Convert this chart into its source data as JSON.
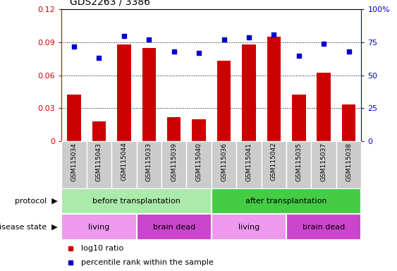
{
  "title": "GDS2263 / 3386",
  "samples": [
    "GSM115034",
    "GSM115043",
    "GSM115044",
    "GSM115033",
    "GSM115039",
    "GSM115040",
    "GSM115036",
    "GSM115041",
    "GSM115042",
    "GSM115035",
    "GSM115037",
    "GSM115038"
  ],
  "log10_ratio": [
    0.042,
    0.018,
    0.088,
    0.085,
    0.022,
    0.02,
    0.073,
    0.088,
    0.095,
    0.042,
    0.062,
    0.033
  ],
  "percentile_rank": [
    72,
    63,
    80,
    77,
    68,
    67,
    77,
    79,
    81,
    65,
    74,
    68
  ],
  "bar_color": "#cc0000",
  "dot_color": "#0000cc",
  "ylim_left": [
    0,
    0.12
  ],
  "ylim_right": [
    0,
    100
  ],
  "yticks_left": [
    0,
    0.03,
    0.06,
    0.09,
    0.12
  ],
  "yticks_right": [
    0,
    25,
    50,
    75,
    100
  ],
  "ytick_labels_left": [
    "0",
    "0.03",
    "0.06",
    "0.09",
    "0.12"
  ],
  "ytick_labels_right": [
    "0",
    "25",
    "50",
    "75",
    "100%"
  ],
  "protocol_labels": [
    {
      "text": "before transplantation",
      "start": 0,
      "end": 6,
      "color": "#aaeaaa"
    },
    {
      "text": "after transplantation",
      "start": 6,
      "end": 12,
      "color": "#44cc44"
    }
  ],
  "disease_labels": [
    {
      "text": "living",
      "start": 0,
      "end": 3,
      "color": "#ee99ee"
    },
    {
      "text": "brain dead",
      "start": 3,
      "end": 6,
      "color": "#cc44cc"
    },
    {
      "text": "living",
      "start": 6,
      "end": 9,
      "color": "#ee99ee"
    },
    {
      "text": "brain dead",
      "start": 9,
      "end": 12,
      "color": "#cc44cc"
    }
  ],
  "legend_red_label": "log10 ratio",
  "legend_blue_label": "percentile rank within the sample",
  "background_label": "#cccccc"
}
